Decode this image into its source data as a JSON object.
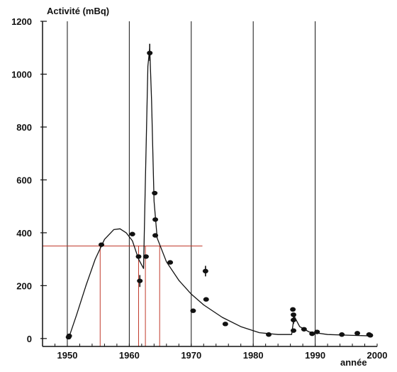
{
  "chart_data": {
    "type": "scatter",
    "title": "",
    "ylabel": "Activité (mBq)",
    "xlabel": "année",
    "xlim": [
      1946,
      2000
    ],
    "ylim": [
      -30,
      1200
    ],
    "x_ticks": [
      1950,
      1960,
      1970,
      1980,
      1990,
      2000
    ],
    "y_ticks": [
      0,
      200,
      400,
      600,
      800,
      1000,
      1200
    ],
    "grid": "vertical",
    "colors": {
      "ink": "#111111",
      "guide": "#c0392b"
    },
    "series": [
      {
        "type": "scatter",
        "points": [
          {
            "x": 1950.2,
            "y": 5
          },
          {
            "x": 1950.3,
            "y": 10
          },
          {
            "x": 1955.5,
            "y": 355
          },
          {
            "x": 1960.5,
            "y": 395
          },
          {
            "x": 1961.5,
            "y": 310
          },
          {
            "x": 1961.7,
            "y": 218
          },
          {
            "x": 1962.7,
            "y": 310
          },
          {
            "x": 1963.3,
            "y": 1080
          },
          {
            "x": 1964.1,
            "y": 550
          },
          {
            "x": 1964.2,
            "y": 450
          },
          {
            "x": 1964.2,
            "y": 390
          },
          {
            "x": 1966.6,
            "y": 288
          },
          {
            "x": 1970.3,
            "y": 105
          },
          {
            "x": 1972.3,
            "y": 255
          },
          {
            "x": 1972.4,
            "y": 148
          },
          {
            "x": 1975.5,
            "y": 55
          },
          {
            "x": 1982.5,
            "y": 15
          },
          {
            "x": 1986.4,
            "y": 110
          },
          {
            "x": 1986.5,
            "y": 90
          },
          {
            "x": 1986.5,
            "y": 70
          },
          {
            "x": 1986.5,
            "y": 30
          },
          {
            "x": 1988.2,
            "y": 35
          },
          {
            "x": 1989.5,
            "y": 18
          },
          {
            "x": 1990.3,
            "y": 25
          },
          {
            "x": 1994.3,
            "y": 15
          },
          {
            "x": 1996.8,
            "y": 20
          },
          {
            "x": 1998.7,
            "y": 15
          },
          {
            "x": 1998.9,
            "y": 12
          }
        ]
      },
      {
        "type": "line",
        "points": [
          {
            "x": 1950.2,
            "y": 0
          },
          {
            "x": 1951.5,
            "y": 90
          },
          {
            "x": 1953,
            "y": 200
          },
          {
            "x": 1954.5,
            "y": 300
          },
          {
            "x": 1956,
            "y": 375
          },
          {
            "x": 1957.5,
            "y": 412
          },
          {
            "x": 1958.5,
            "y": 415
          },
          {
            "x": 1959.5,
            "y": 400
          },
          {
            "x": 1960.5,
            "y": 370
          },
          {
            "x": 1961.5,
            "y": 300
          },
          {
            "x": 1962.3,
            "y": 265
          },
          {
            "x": 1962.6,
            "y": 600
          },
          {
            "x": 1963.0,
            "y": 1030
          },
          {
            "x": 1963.3,
            "y": 1100
          },
          {
            "x": 1963.6,
            "y": 900
          },
          {
            "x": 1964.0,
            "y": 520
          },
          {
            "x": 1964.5,
            "y": 380
          },
          {
            "x": 1966,
            "y": 290
          },
          {
            "x": 1968,
            "y": 220
          },
          {
            "x": 1970,
            "y": 168
          },
          {
            "x": 1972,
            "y": 127
          },
          {
            "x": 1975,
            "y": 80
          },
          {
            "x": 1978,
            "y": 45
          },
          {
            "x": 1981,
            "y": 22
          },
          {
            "x": 1984,
            "y": 15
          },
          {
            "x": 1986.2,
            "y": 15
          },
          {
            "x": 1986.6,
            "y": 85
          },
          {
            "x": 1987.5,
            "y": 45
          },
          {
            "x": 1989,
            "y": 25
          },
          {
            "x": 1992,
            "y": 15
          },
          {
            "x": 1996,
            "y": 12
          },
          {
            "x": 1999,
            "y": 10
          }
        ]
      }
    ],
    "error_bars": [
      {
        "x": 1963.3,
        "y": 1080,
        "ylow": 1050,
        "yhigh": 1115
      },
      {
        "x": 1972.3,
        "y": 255,
        "ylow": 235,
        "yhigh": 275
      },
      {
        "x": 1961.7,
        "y": 218,
        "ylow": 195,
        "yhigh": 240
      },
      {
        "x": 1986.5,
        "y": 70,
        "ylow": 55,
        "yhigh": 85
      }
    ],
    "reference_lines": {
      "horizontal": {
        "y": 350,
        "x_from": 1946,
        "x_to": 1971.8
      },
      "vertical": [
        {
          "x": 1955.3,
          "y_to": 350
        },
        {
          "x": 1961.5,
          "y_to": 350
        },
        {
          "x": 1962.6,
          "y_to": 350
        },
        {
          "x": 1964.9,
          "y_to": 350
        }
      ]
    }
  }
}
